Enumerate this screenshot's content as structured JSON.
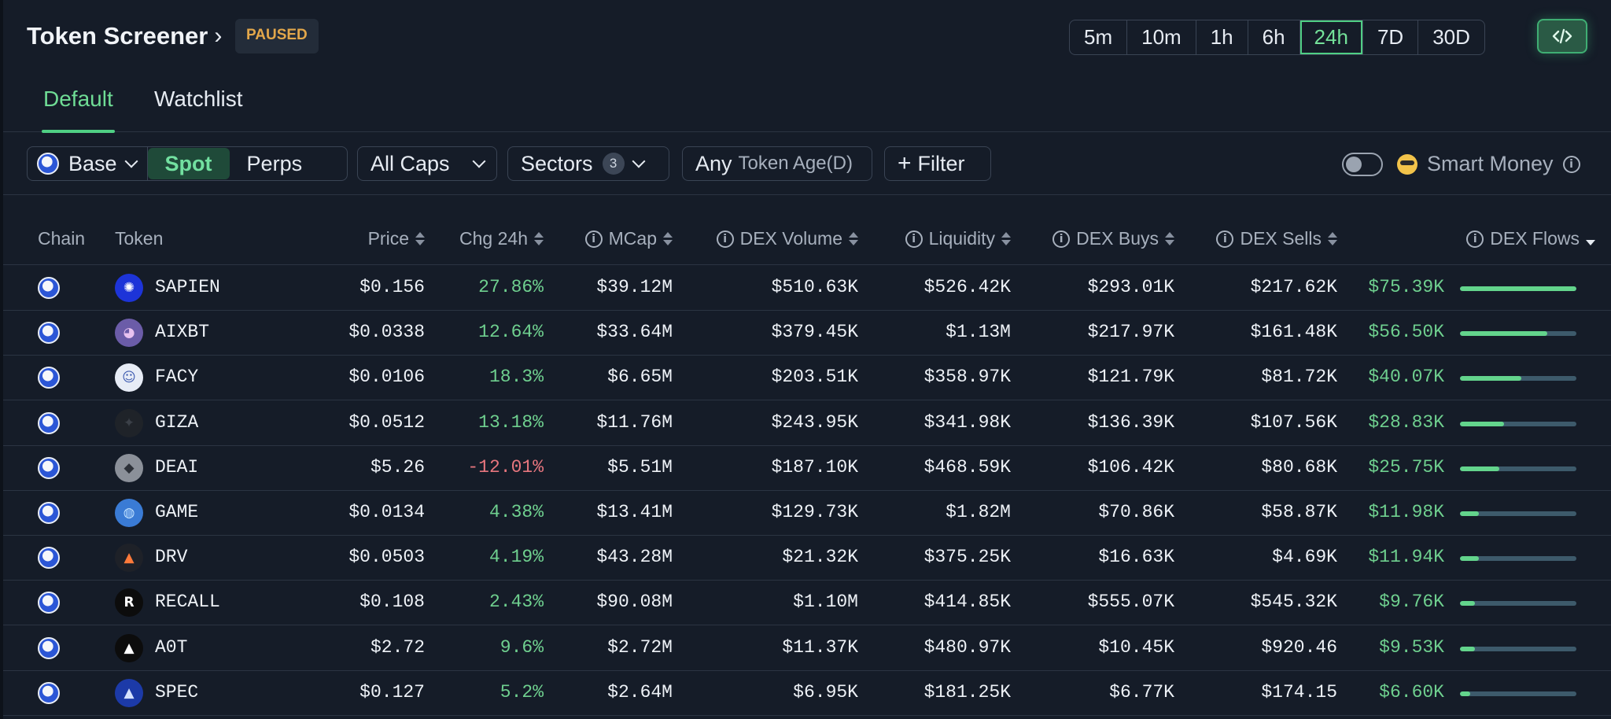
{
  "header": {
    "title": "Token Screener",
    "status": "PAUSED",
    "timeframes": [
      "5m",
      "10m",
      "1h",
      "6h",
      "24h",
      "7D",
      "30D"
    ],
    "active_timeframe": "24h"
  },
  "tabs": [
    {
      "label": "Default",
      "active": true
    },
    {
      "label": "Watchlist",
      "active": false
    }
  ],
  "filters": {
    "chain": "Base",
    "market_types": [
      "Spot",
      "Perps"
    ],
    "active_market": "Spot",
    "caps": "All Caps",
    "sectors_label": "Sectors",
    "sectors_count": "3",
    "token_age_value": "Any",
    "token_age_label": "Token Age(D)",
    "filter_label": "Filter",
    "smart_money_label": "Smart Money",
    "smart_money_enabled": false
  },
  "columns": {
    "chain": "Chain",
    "token": "Token",
    "price": "Price",
    "change": "Chg 24h",
    "mcap": "MCap",
    "dex_volume": "DEX Volume",
    "liquidity": "Liquidity",
    "dex_buys": "DEX Buys",
    "dex_sells": "DEX Sells",
    "dex_flows": "DEX Flows"
  },
  "rows": [
    {
      "token": "SAPIEN",
      "price": "$0.156",
      "change": "27.86%",
      "mcap": "$39.12M",
      "volume": "$510.63K",
      "liquidity": "$526.42K",
      "buys": "$293.01K",
      "sells": "$217.62K",
      "flows": "$75.39K",
      "flow_ratio": 1.0
    },
    {
      "token": "AIXBT",
      "price": "$0.0338",
      "change": "12.64%",
      "mcap": "$33.64M",
      "volume": "$379.45K",
      "liquidity": "$1.13M",
      "buys": "$217.97K",
      "sells": "$161.48K",
      "flows": "$56.50K",
      "flow_ratio": 0.75
    },
    {
      "token": "FACY",
      "price": "$0.0106",
      "change": "18.3%",
      "mcap": "$6.65M",
      "volume": "$203.51K",
      "liquidity": "$358.97K",
      "buys": "$121.79K",
      "sells": "$81.72K",
      "flows": "$40.07K",
      "flow_ratio": 0.53
    },
    {
      "token": "GIZA",
      "price": "$0.0512",
      "change": "13.18%",
      "mcap": "$11.76M",
      "volume": "$243.95K",
      "liquidity": "$341.98K",
      "buys": "$136.39K",
      "sells": "$107.56K",
      "flows": "$28.83K",
      "flow_ratio": 0.38
    },
    {
      "token": "DEAI",
      "price": "$5.26",
      "change": "-12.01%",
      "mcap": "$5.51M",
      "volume": "$187.10K",
      "liquidity": "$468.59K",
      "buys": "$106.42K",
      "sells": "$80.68K",
      "flows": "$25.75K",
      "flow_ratio": 0.34
    },
    {
      "token": "GAME",
      "price": "$0.0134",
      "change": "4.38%",
      "mcap": "$13.41M",
      "volume": "$129.73K",
      "liquidity": "$1.82M",
      "buys": "$70.86K",
      "sells": "$58.87K",
      "flows": "$11.98K",
      "flow_ratio": 0.16
    },
    {
      "token": "DRV",
      "price": "$0.0503",
      "change": "4.19%",
      "mcap": "$43.28M",
      "volume": "$21.32K",
      "liquidity": "$375.25K",
      "buys": "$16.63K",
      "sells": "$4.69K",
      "flows": "$11.94K",
      "flow_ratio": 0.16
    },
    {
      "token": "RECALL",
      "price": "$0.108",
      "change": "2.43%",
      "mcap": "$90.08M",
      "volume": "$1.10M",
      "liquidity": "$414.85K",
      "buys": "$555.07K",
      "sells": "$545.32K",
      "flows": "$9.76K",
      "flow_ratio": 0.13
    },
    {
      "token": "A0T",
      "price": "$2.72",
      "change": "9.6%",
      "mcap": "$2.72M",
      "volume": "$11.37K",
      "liquidity": "$480.97K",
      "buys": "$10.45K",
      "sells": "$920.46",
      "flows": "$9.53K",
      "flow_ratio": 0.13
    },
    {
      "token": "SPEC",
      "price": "$0.127",
      "change": "5.2%",
      "mcap": "$2.64M",
      "volume": "$6.95K",
      "liquidity": "$181.25K",
      "buys": "$6.77K",
      "sells": "$174.15",
      "flows": "$6.60K",
      "flow_ratio": 0.09
    }
  ],
  "colors": {
    "accent": "#4fcf84",
    "positive": "#6fd08f",
    "negative": "#e7767e",
    "paused": "#e3a74a",
    "background": "#151c28"
  }
}
